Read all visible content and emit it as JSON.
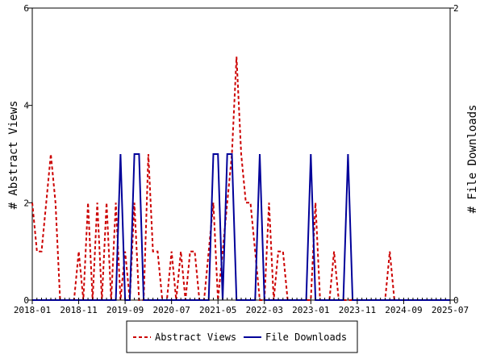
{
  "chart_data": {
    "type": "line",
    "x_tick_labels": [
      "2018-01",
      "2018-11",
      "2019-09",
      "2020-07",
      "2021-05",
      "2022-03",
      "2023-01",
      "2023-11",
      "2024-09",
      "2025-07"
    ],
    "x_range": [
      "2018-01",
      "2025-07"
    ],
    "y_left": {
      "label": "# Abstract Views",
      "ticks": [
        0,
        2,
        4,
        6
      ],
      "range": [
        0,
        6
      ]
    },
    "y_right": {
      "label": "# File Downloads",
      "ticks": [
        0,
        2
      ],
      "range": [
        0,
        2
      ]
    },
    "legend": {
      "position": "bottom"
    },
    "series": [
      {
        "name": "Abstract Views",
        "axis": "left",
        "color": "#cc0000",
        "style": "dashed",
        "points": [
          [
            "2018-01",
            2
          ],
          [
            "2018-02",
            1
          ],
          [
            "2018-03",
            1
          ],
          [
            "2018-04",
            2
          ],
          [
            "2018-05",
            3
          ],
          [
            "2018-06",
            2
          ],
          [
            "2018-07",
            0
          ],
          [
            "2018-08",
            0
          ],
          [
            "2018-09",
            0
          ],
          [
            "2018-10",
            0
          ],
          [
            "2018-11",
            1
          ],
          [
            "2018-12",
            0
          ],
          [
            "2019-01",
            2
          ],
          [
            "2019-02",
            0
          ],
          [
            "2019-03",
            2
          ],
          [
            "2019-04",
            0
          ],
          [
            "2019-05",
            2
          ],
          [
            "2019-06",
            0
          ],
          [
            "2019-07",
            2
          ],
          [
            "2019-08",
            0
          ],
          [
            "2019-09",
            1
          ],
          [
            "2019-10",
            0
          ],
          [
            "2019-11",
            2
          ],
          [
            "2019-12",
            0
          ],
          [
            "2020-01",
            0
          ],
          [
            "2020-02",
            3
          ],
          [
            "2020-03",
            1
          ],
          [
            "2020-04",
            1
          ],
          [
            "2020-05",
            0
          ],
          [
            "2020-06",
            0
          ],
          [
            "2020-07",
            1
          ],
          [
            "2020-08",
            0
          ],
          [
            "2020-09",
            1
          ],
          [
            "2020-10",
            0
          ],
          [
            "2020-11",
            1
          ],
          [
            "2020-12",
            1
          ],
          [
            "2021-01",
            0
          ],
          [
            "2021-02",
            0
          ],
          [
            "2021-03",
            1
          ],
          [
            "2021-04",
            2
          ],
          [
            "2021-05",
            0
          ],
          [
            "2021-06",
            1
          ],
          [
            "2021-07",
            2
          ],
          [
            "2021-08",
            3
          ],
          [
            "2021-09",
            5
          ],
          [
            "2021-10",
            3
          ],
          [
            "2021-11",
            2
          ],
          [
            "2021-12",
            2
          ],
          [
            "2022-01",
            1
          ],
          [
            "2022-02",
            0
          ],
          [
            "2022-03",
            0
          ],
          [
            "2022-04",
            2
          ],
          [
            "2022-05",
            0
          ],
          [
            "2022-06",
            1
          ],
          [
            "2022-07",
            1
          ],
          [
            "2022-08",
            0
          ],
          [
            "2022-09",
            0
          ],
          [
            "2022-10",
            0
          ],
          [
            "2022-11",
            0
          ],
          [
            "2022-12",
            0
          ],
          [
            "2023-01",
            0
          ],
          [
            "2023-02",
            2
          ],
          [
            "2023-03",
            0
          ],
          [
            "2023-04",
            0
          ],
          [
            "2023-05",
            0
          ],
          [
            "2023-06",
            1
          ],
          [
            "2023-07",
            0
          ],
          [
            "2023-08",
            0
          ],
          [
            "2023-09",
            0
          ],
          [
            "2023-10",
            0
          ],
          [
            "2023-11",
            0
          ],
          [
            "2023-12",
            0
          ],
          [
            "2024-01",
            0
          ],
          [
            "2024-02",
            0
          ],
          [
            "2024-03",
            0
          ],
          [
            "2024-04",
            0
          ],
          [
            "2024-05",
            0
          ],
          [
            "2024-06",
            1
          ],
          [
            "2024-07",
            0
          ],
          [
            "2024-08",
            0
          ],
          [
            "2024-09",
            0
          ],
          [
            "2025-07",
            0
          ]
        ]
      },
      {
        "name": "File Downloads",
        "axis": "right",
        "color": "#000099",
        "style": "solid",
        "points": [
          [
            "2018-01",
            0
          ],
          [
            "2019-07",
            0
          ],
          [
            "2019-08",
            1
          ],
          [
            "2019-09",
            0
          ],
          [
            "2019-10",
            0
          ],
          [
            "2019-11",
            1
          ],
          [
            "2019-12",
            1
          ],
          [
            "2020-01",
            0
          ],
          [
            "2020-02",
            0
          ],
          [
            "2021-02",
            0
          ],
          [
            "2021-03",
            0
          ],
          [
            "2021-04",
            1
          ],
          [
            "2021-05",
            1
          ],
          [
            "2021-06",
            0
          ],
          [
            "2021-07",
            1
          ],
          [
            "2021-08",
            1
          ],
          [
            "2021-09",
            0
          ],
          [
            "2022-01",
            0
          ],
          [
            "2022-02",
            1
          ],
          [
            "2022-03",
            0
          ],
          [
            "2022-12",
            0
          ],
          [
            "2023-01",
            1
          ],
          [
            "2023-02",
            0
          ],
          [
            "2023-08",
            0
          ],
          [
            "2023-09",
            1
          ],
          [
            "2023-10",
            0
          ],
          [
            "2025-07",
            0
          ]
        ]
      }
    ]
  }
}
